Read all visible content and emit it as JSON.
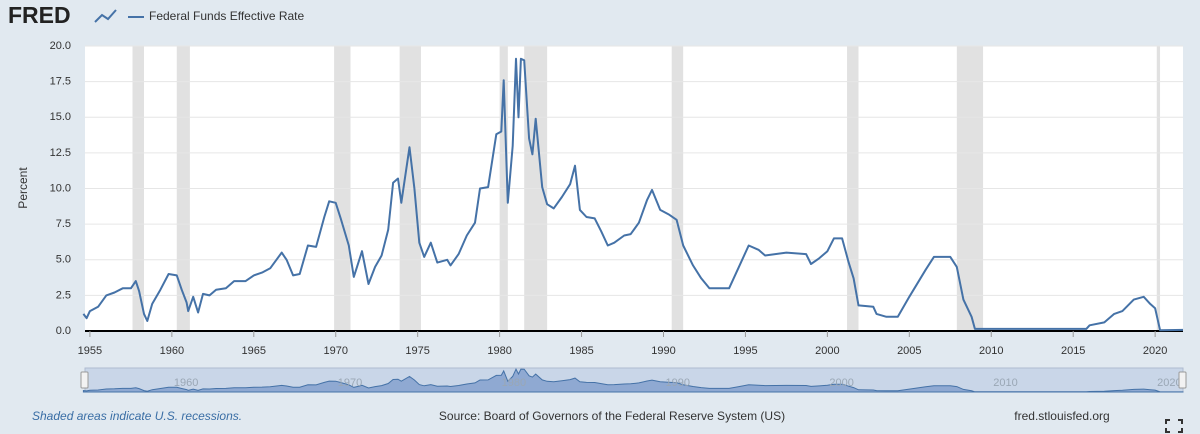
{
  "logo": "FRED",
  "chart_data": {
    "type": "line",
    "ylabel": "Percent",
    "note": "Shaded areas indicate U.S. recessions.",
    "source": "Source: Board of Governors of the Federal Reserve System (US)",
    "site": "fred.stlouisfed.org",
    "xlim": [
      1954.7,
      2021.7
    ],
    "ylim": [
      0,
      20
    ],
    "xticks": [
      1955,
      1960,
      1965,
      1970,
      1975,
      1980,
      1985,
      1990,
      1995,
      2000,
      2005,
      2010,
      2015,
      2020
    ],
    "yticks": [
      {
        "value": 0,
        "label": "0.0"
      },
      2.5,
      {
        "value": 5,
        "label": "5.0"
      },
      7.5,
      {
        "value": 10,
        "label": "10.0"
      },
      12.5,
      {
        "value": 15,
        "label": "15.0"
      },
      17.5,
      {
        "value": 20,
        "label": "20.0"
      }
    ],
    "grid": true,
    "recessions": [
      [
        1957.6,
        1958.3
      ],
      [
        1960.3,
        1961.1
      ],
      [
        1969.9,
        1970.9
      ],
      [
        1973.9,
        1975.2
      ],
      [
        1980.0,
        1980.5
      ],
      [
        1981.5,
        1982.9
      ],
      [
        1990.5,
        1991.2
      ],
      [
        2001.2,
        2001.9
      ],
      [
        2007.9,
        2009.5
      ],
      [
        2020.1,
        2020.3
      ]
    ],
    "recession_color": "#e1e1e1",
    "series": [
      {
        "name": "Federal Funds Effective Rate",
        "color": "#4572a7",
        "x": [
          1954.6,
          1954.8,
          1955.0,
          1955.5,
          1956.0,
          1956.5,
          1957.0,
          1957.5,
          1957.8,
          1958.0,
          1958.3,
          1958.5,
          1958.8,
          1959.3,
          1959.8,
          1960.3,
          1960.6,
          1960.9,
          1961.0,
          1961.3,
          1961.6,
          1961.9,
          1962.3,
          1962.7,
          1963.3,
          1963.8,
          1964.5,
          1965.0,
          1965.5,
          1966.0,
          1966.7,
          1967.0,
          1967.4,
          1967.8,
          1968.3,
          1968.8,
          1969.3,
          1969.6,
          1970.0,
          1970.3,
          1970.8,
          1971.1,
          1971.3,
          1971.6,
          1972.0,
          1972.4,
          1972.8,
          1973.2,
          1973.5,
          1973.8,
          1974.0,
          1974.5,
          1974.8,
          1975.1,
          1975.4,
          1975.8,
          1976.2,
          1976.8,
          1977.0,
          1977.5,
          1978.0,
          1978.5,
          1978.8,
          1979.3,
          1979.8,
          1980.1,
          1980.25,
          1980.5,
          1980.8,
          1981.0,
          1981.15,
          1981.3,
          1981.5,
          1981.8,
          1982.0,
          1982.2,
          1982.6,
          1982.9,
          1983.3,
          1983.8,
          1984.3,
          1984.6,
          1984.9,
          1985.3,
          1985.8,
          1986.2,
          1986.6,
          1987.0,
          1987.6,
          1988.0,
          1988.5,
          1989.0,
          1989.3,
          1989.8,
          1990.3,
          1990.8,
          1991.2,
          1991.8,
          1992.3,
          1992.8,
          1993.5,
          1994.0,
          1994.6,
          1995.2,
          1995.8,
          1996.2,
          1997.5,
          1998.7,
          1999.0,
          1999.5,
          2000.0,
          2000.4,
          2000.9,
          2001.3,
          2001.6,
          2001.9,
          2002.8,
          2003.0,
          2003.6,
          2004.3,
          2005.0,
          2006.0,
          2006.5,
          2007.5,
          2007.9,
          2008.3,
          2008.8,
          2009.0,
          2010.0,
          2012.0,
          2015.8,
          2016.0,
          2016.9,
          2017.5,
          2018.0,
          2018.7,
          2019.3,
          2019.7,
          2020.0,
          2020.3,
          2021.7
        ],
        "values": [
          1.2,
          0.9,
          1.4,
          1.7,
          2.5,
          2.7,
          3.0,
          3.0,
          3.5,
          2.8,
          1.2,
          0.7,
          1.9,
          2.9,
          4.0,
          3.9,
          2.9,
          2.0,
          1.4,
          2.4,
          1.3,
          2.6,
          2.5,
          2.9,
          3.0,
          3.5,
          3.5,
          3.9,
          4.1,
          4.4,
          5.5,
          5.0,
          3.9,
          4.0,
          6.0,
          5.9,
          8.0,
          9.1,
          9.0,
          7.9,
          6.0,
          3.8,
          4.5,
          5.6,
          3.3,
          4.5,
          5.3,
          7.1,
          10.4,
          10.7,
          9.0,
          12.9,
          10.0,
          6.2,
          5.2,
          6.2,
          4.8,
          5.0,
          4.6,
          5.4,
          6.7,
          7.6,
          10.0,
          10.1,
          13.8,
          14.0,
          17.6,
          9.0,
          13.0,
          19.1,
          15.0,
          19.1,
          19.0,
          13.5,
          12.4,
          14.9,
          10.1,
          8.9,
          8.6,
          9.4,
          10.3,
          11.6,
          8.5,
          8.0,
          7.9,
          7.0,
          6.0,
          6.2,
          6.7,
          6.8,
          7.6,
          9.2,
          9.9,
          8.5,
          8.2,
          7.8,
          6.0,
          4.6,
          3.7,
          3.0,
          3.0,
          3.0,
          4.5,
          6.0,
          5.7,
          5.3,
          5.5,
          5.4,
          4.7,
          5.1,
          5.6,
          6.5,
          6.5,
          4.8,
          3.7,
          1.8,
          1.7,
          1.2,
          1.0,
          1.0,
          2.4,
          4.3,
          5.2,
          5.2,
          4.5,
          2.2,
          1.0,
          0.15,
          0.15,
          0.15,
          0.15,
          0.4,
          0.6,
          1.2,
          1.4,
          2.2,
          2.4,
          1.9,
          1.6,
          0.05,
          0.08
        ]
      }
    ]
  }
}
